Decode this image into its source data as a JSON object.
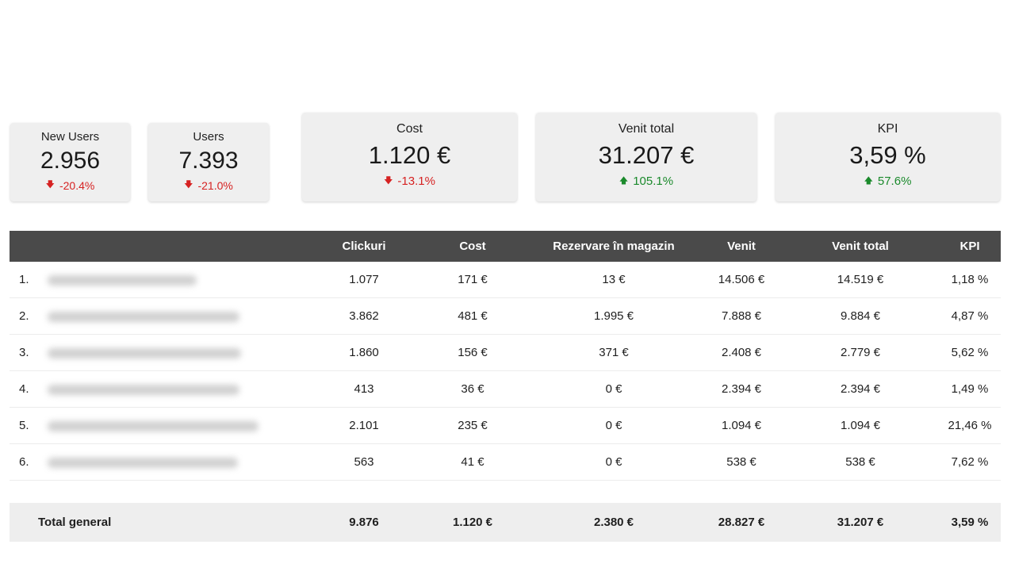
{
  "scorecards": [
    {
      "label": "New Users",
      "value": "2.956",
      "delta": "-20.4%",
      "direction": "down"
    },
    {
      "label": "Users",
      "value": "7.393",
      "delta": "-21.0%",
      "direction": "down"
    },
    {
      "label": "Cost",
      "value": "1.120 €",
      "delta": "-13.1%",
      "direction": "down"
    },
    {
      "label": "Venit total",
      "value": "31.207 €",
      "delta": "105.1%",
      "direction": "up"
    },
    {
      "label": "KPI",
      "value": "3,59 %",
      "delta": "57.6%",
      "direction": "up"
    }
  ],
  "icons": {
    "down": "arrow-down-icon",
    "up": "arrow-up-icon"
  },
  "colors": {
    "negative": "#d62222",
    "positive": "#1b8a2c",
    "header_bg": "#4a4a4a",
    "card_bg": "#efefef"
  },
  "table": {
    "columns": [
      "Clickuri",
      "Cost",
      "Rezervare în magazin",
      "Venit",
      "Venit total",
      "KPI"
    ],
    "rows": [
      {
        "index": "1.",
        "clicks": "1.077",
        "cost": "171 €",
        "rezervare": "13 €",
        "venit": "14.506 €",
        "venit_total": "14.519 €",
        "kpi": "1,18 %"
      },
      {
        "index": "2.",
        "clicks": "3.862",
        "cost": "481 €",
        "rezervare": "1.995 €",
        "venit": "7.888 €",
        "venit_total": "9.884 €",
        "kpi": "4,87 %"
      },
      {
        "index": "3.",
        "clicks": "1.860",
        "cost": "156 €",
        "rezervare": "371 €",
        "venit": "2.408 €",
        "venit_total": "2.779 €",
        "kpi": "5,62 %"
      },
      {
        "index": "4.",
        "clicks": "413",
        "cost": "36 €",
        "rezervare": "0 €",
        "venit": "2.394 €",
        "venit_total": "2.394 €",
        "kpi": "1,49 %"
      },
      {
        "index": "5.",
        "clicks": "2.101",
        "cost": "235 €",
        "rezervare": "0 €",
        "venit": "1.094 €",
        "venit_total": "1.094 €",
        "kpi": "21,46 %"
      },
      {
        "index": "6.",
        "clicks": "563",
        "cost": "41 €",
        "rezervare": "0 €",
        "venit": "538 €",
        "venit_total": "538 €",
        "kpi": "7,62 %"
      }
    ],
    "total": {
      "label": "Total general",
      "clicks": "9.876",
      "cost": "1.120 €",
      "rezervare": "2.380 €",
      "venit": "28.827 €",
      "venit_total": "31.207 €",
      "kpi": "3,59 %"
    }
  }
}
